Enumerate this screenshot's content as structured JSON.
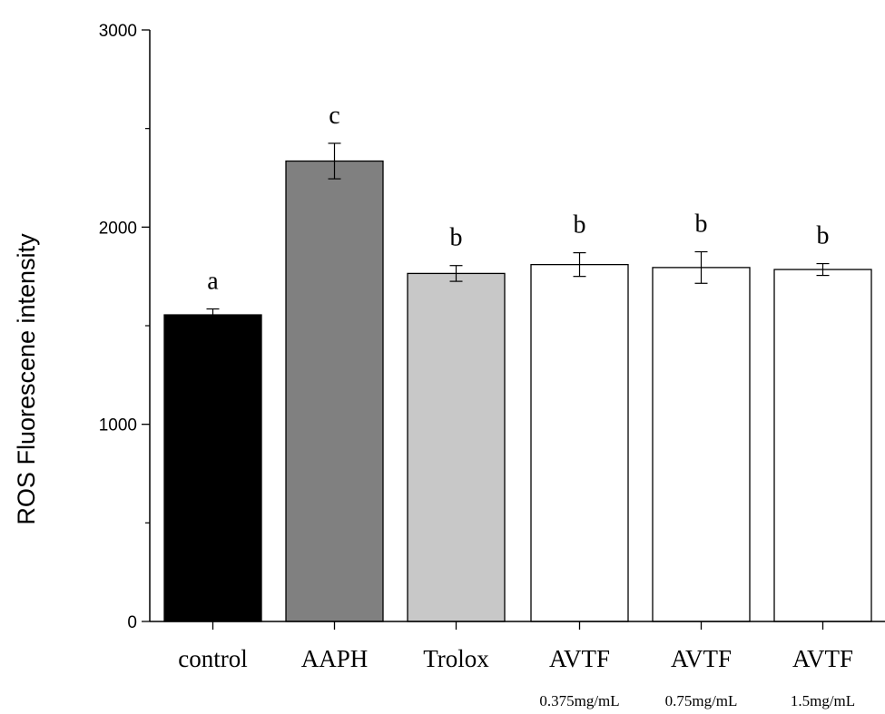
{
  "chart_data": {
    "type": "bar",
    "title": "",
    "xlabel": "",
    "ylabel": "ROS Fluorescene intensity",
    "ylim": [
      0,
      3000
    ],
    "yticks": [
      0,
      1000,
      2000,
      3000
    ],
    "grid": false,
    "legend": "none",
    "categories": [
      "control",
      "AAPH",
      "Trolox",
      "AVTF",
      "AVTF",
      "AVTF"
    ],
    "sublabels": [
      "",
      "",
      "",
      "0.375mg/mL",
      "0.75mg/mL",
      "1.5mg/mL"
    ],
    "values": [
      1555,
      2335,
      1765,
      1810,
      1795,
      1785
    ],
    "errors": [
      30,
      90,
      40,
      60,
      80,
      30
    ],
    "significance": [
      "a",
      "c",
      "b",
      "b",
      "b",
      "b"
    ],
    "colors": [
      "#000000",
      "#808080",
      "#c8c8c8",
      "#ffffff",
      "#ffffff",
      "#ffffff"
    ]
  }
}
